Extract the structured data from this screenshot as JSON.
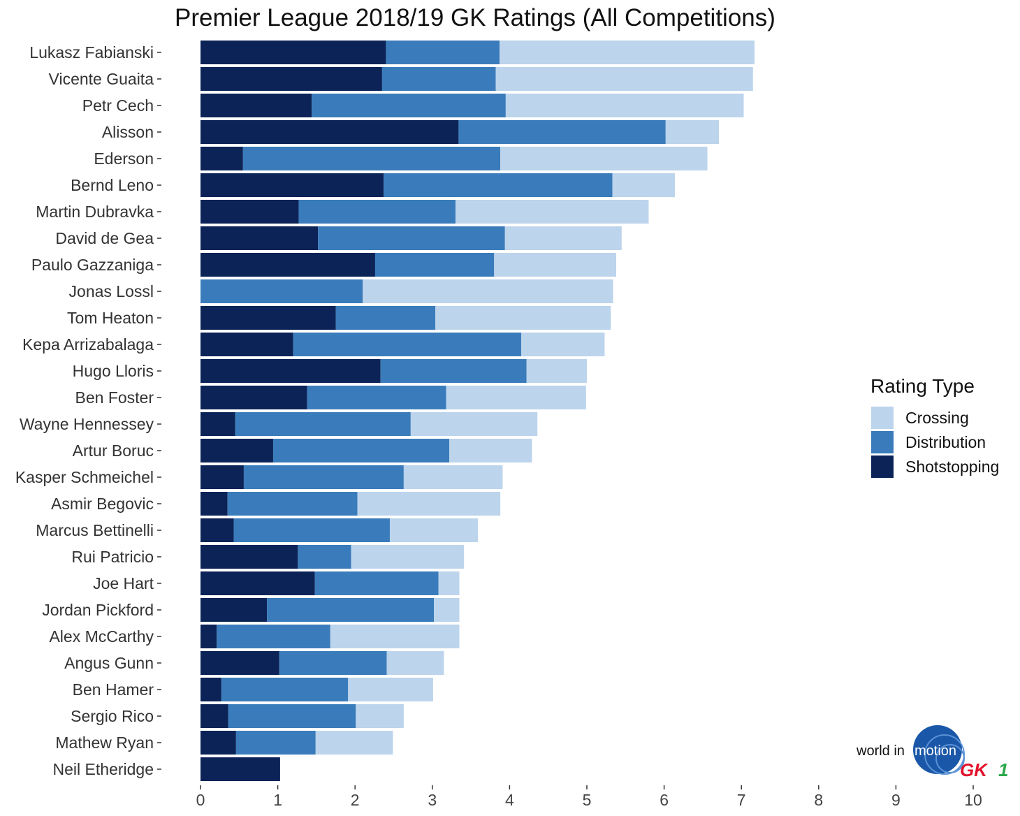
{
  "chart_data": {
    "type": "bar",
    "orientation": "horizontal",
    "stacked": true,
    "title": "Premier League 2018/19 GK Ratings (All Competitions)",
    "xlabel": "",
    "ylabel": "",
    "xlim": [
      0,
      10
    ],
    "x_ticks": [
      "0",
      "1",
      "2",
      "3",
      "4",
      "5",
      "6",
      "7",
      "8",
      "9",
      "10"
    ],
    "grid": false,
    "legend": {
      "title": "Rating Type",
      "position": "right",
      "entries": [
        "Crossing",
        "Distribution",
        "Shotstopping"
      ]
    },
    "categories": [
      "Lukasz Fabianski",
      "Vicente Guaita",
      "Petr Cech",
      "Alisson",
      "Ederson",
      "Bernd Leno",
      "Martin Dubravka",
      "David de Gea",
      "Paulo Gazzaniga",
      "Jonas Lossl",
      "Tom Heaton",
      "Kepa Arrizabalaga",
      "Hugo Lloris",
      "Ben Foster",
      "Wayne Hennessey",
      "Artur Boruc",
      "Kasper Schmeichel",
      "Asmir Begovic",
      "Marcus Bettinelli",
      "Rui Patricio",
      "Joe Hart",
      "Jordan Pickford",
      "Alex McCarthy",
      "Angus Gunn",
      "Ben Hamer",
      "Sergio Rico",
      "Mathew Ryan",
      "Neil Etheridge"
    ],
    "series": [
      {
        "name": "Shotstopping",
        "color": "#0c2357",
        "values": [
          2.4,
          2.35,
          1.44,
          3.34,
          0.55,
          2.37,
          1.27,
          1.52,
          2.26,
          0.0,
          1.75,
          1.2,
          2.33,
          1.38,
          0.45,
          0.94,
          0.56,
          0.35,
          0.43,
          1.26,
          1.48,
          0.86,
          0.21,
          1.02,
          0.27,
          0.36,
          0.46,
          1.03
        ]
      },
      {
        "name": "Distribution",
        "color": "#3a7cbb",
        "values": [
          1.47,
          1.47,
          2.51,
          2.68,
          3.33,
          2.96,
          2.03,
          2.42,
          1.54,
          2.1,
          1.29,
          2.95,
          1.89,
          1.8,
          2.27,
          2.28,
          2.07,
          1.68,
          2.02,
          0.69,
          1.6,
          2.16,
          1.47,
          1.39,
          1.64,
          1.65,
          1.03,
          0.0
        ]
      },
      {
        "name": "Crossing",
        "color": "#bcd4ec",
        "values": [
          3.3,
          3.33,
          3.08,
          0.69,
          2.68,
          0.81,
          2.5,
          1.51,
          1.58,
          3.24,
          2.27,
          1.08,
          0.78,
          1.81,
          1.64,
          1.07,
          1.28,
          1.85,
          1.14,
          1.46,
          0.27,
          0.33,
          1.67,
          0.74,
          1.1,
          0.62,
          1.0,
          0.0
        ]
      }
    ]
  },
  "logo": {
    "text_left": "world in",
    "text_globe": "motion",
    "brand_letters": "GK",
    "brand_digit": "1",
    "globe_color": "#1b57a8"
  }
}
